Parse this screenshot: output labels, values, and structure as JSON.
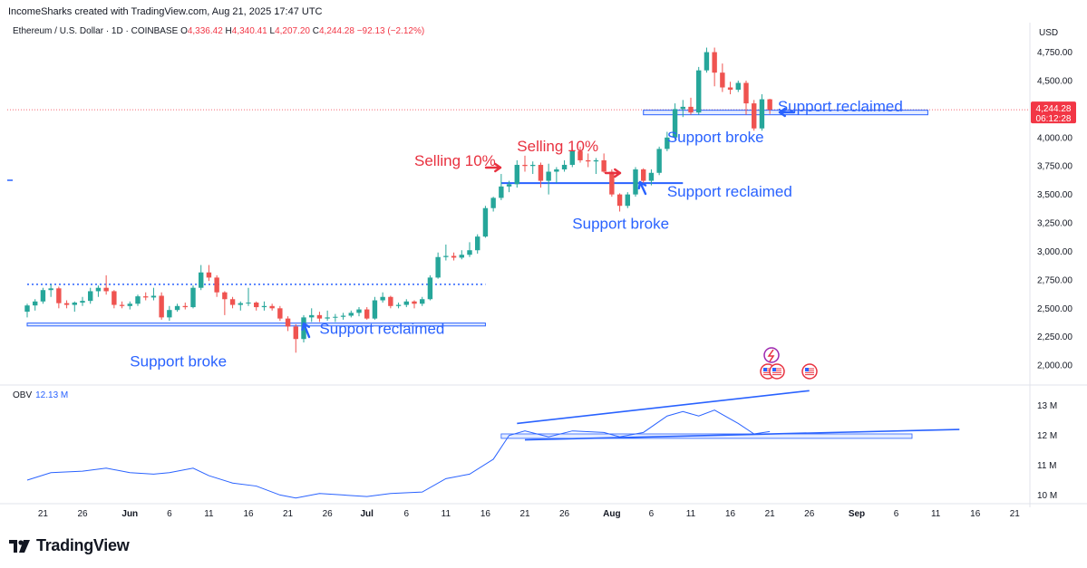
{
  "header": {
    "created_line": "IncomeSharks created with TradingView.com, Aug 21, 2025 17:47 UTC",
    "symbol": "Ethereum / U.S. Dollar · 1D · COINBASE",
    "ohlc": [
      {
        "label": "O",
        "value": "4,336.42"
      },
      {
        "label": "H",
        "value": "4,340.41"
      },
      {
        "label": "L",
        "value": "4,207.20"
      },
      {
        "label": "C",
        "value": "4,244.28"
      }
    ],
    "change": "−92.13 (−2.12%)"
  },
  "brand": {
    "name": "TradingView"
  },
  "colors": {
    "up": "#26a69a",
    "down": "#ef5350",
    "annotation_blue": "#2962ff",
    "annotation_red": "#e8313f",
    "price_label": "#f23645"
  },
  "chart_data": [
    {
      "type": "candlestick",
      "title": "Ethereum / U.S. Dollar · 1D · COINBASE",
      "currency_label": "USD",
      "ylim": [
        1850,
        4850
      ],
      "y_ticks": [
        "4,750.00",
        "4,500.00",
        "4,250.00",
        "4,000.00",
        "3,750.00",
        "3,500.00",
        "3,250.00",
        "3,000.00",
        "2,750.00",
        "2,500.00",
        "2,250.00",
        "2,000.00"
      ],
      "x_ticks": [
        "21",
        "26",
        "Jun",
        "6",
        "11",
        "16",
        "21",
        "26",
        "Jul",
        "6",
        "11",
        "16",
        "21",
        "26",
        "Aug",
        "6",
        "11",
        "16",
        "21",
        "26",
        "Sep",
        "6",
        "11",
        "16",
        "21"
      ],
      "x_range_dates": [
        "2025-05-19",
        "2025-09-22"
      ],
      "last_price": "4,244.28",
      "countdown": "06:12:28",
      "candles": [
        {
          "d": "2025-05-19",
          "o": 2470,
          "h": 2540,
          "l": 2420,
          "c": 2525
        },
        {
          "d": "2025-05-20",
          "o": 2525,
          "h": 2580,
          "l": 2480,
          "c": 2560
        },
        {
          "d": "2025-05-21",
          "o": 2560,
          "h": 2680,
          "l": 2540,
          "c": 2660
        },
        {
          "d": "2025-05-22",
          "o": 2660,
          "h": 2710,
          "l": 2600,
          "c": 2675
        },
        {
          "d": "2025-05-23",
          "o": 2675,
          "h": 2690,
          "l": 2500,
          "c": 2545
        },
        {
          "d": "2025-05-24",
          "o": 2545,
          "h": 2570,
          "l": 2500,
          "c": 2530
        },
        {
          "d": "2025-05-25",
          "o": 2530,
          "h": 2560,
          "l": 2470,
          "c": 2550
        },
        {
          "d": "2025-05-26",
          "o": 2550,
          "h": 2600,
          "l": 2520,
          "c": 2565
        },
        {
          "d": "2025-05-27",
          "o": 2565,
          "h": 2680,
          "l": 2540,
          "c": 2650
        },
        {
          "d": "2025-05-28",
          "o": 2650,
          "h": 2700,
          "l": 2600,
          "c": 2680
        },
        {
          "d": "2025-05-29",
          "o": 2680,
          "h": 2790,
          "l": 2620,
          "c": 2650
        },
        {
          "d": "2025-05-30",
          "o": 2650,
          "h": 2660,
          "l": 2500,
          "c": 2530
        },
        {
          "d": "2025-05-31",
          "o": 2530,
          "h": 2560,
          "l": 2500,
          "c": 2520
        },
        {
          "d": "2025-06-01",
          "o": 2520,
          "h": 2560,
          "l": 2490,
          "c": 2540
        },
        {
          "d": "2025-06-02",
          "o": 2540,
          "h": 2620,
          "l": 2520,
          "c": 2605
        },
        {
          "d": "2025-06-03",
          "o": 2605,
          "h": 2640,
          "l": 2570,
          "c": 2595
        },
        {
          "d": "2025-06-04",
          "o": 2595,
          "h": 2680,
          "l": 2570,
          "c": 2610
        },
        {
          "d": "2025-06-05",
          "o": 2610,
          "h": 2640,
          "l": 2400,
          "c": 2420
        },
        {
          "d": "2025-06-06",
          "o": 2420,
          "h": 2520,
          "l": 2390,
          "c": 2485
        },
        {
          "d": "2025-06-07",
          "o": 2485,
          "h": 2540,
          "l": 2470,
          "c": 2520
        },
        {
          "d": "2025-06-08",
          "o": 2520,
          "h": 2550,
          "l": 2490,
          "c": 2510
        },
        {
          "d": "2025-06-09",
          "o": 2510,
          "h": 2700,
          "l": 2500,
          "c": 2680
        },
        {
          "d": "2025-06-10",
          "o": 2680,
          "h": 2880,
          "l": 2660,
          "c": 2815
        },
        {
          "d": "2025-06-11",
          "o": 2815,
          "h": 2880,
          "l": 2740,
          "c": 2770
        },
        {
          "d": "2025-06-12",
          "o": 2770,
          "h": 2790,
          "l": 2600,
          "c": 2640
        },
        {
          "d": "2025-06-13",
          "o": 2640,
          "h": 2650,
          "l": 2440,
          "c": 2580
        },
        {
          "d": "2025-06-14",
          "o": 2580,
          "h": 2600,
          "l": 2500,
          "c": 2530
        },
        {
          "d": "2025-06-15",
          "o": 2530,
          "h": 2560,
          "l": 2480,
          "c": 2545
        },
        {
          "d": "2025-06-16",
          "o": 2545,
          "h": 2680,
          "l": 2520,
          "c": 2550
        },
        {
          "d": "2025-06-17",
          "o": 2550,
          "h": 2560,
          "l": 2480,
          "c": 2510
        },
        {
          "d": "2025-06-18",
          "o": 2510,
          "h": 2560,
          "l": 2480,
          "c": 2520
        },
        {
          "d": "2025-06-19",
          "o": 2520,
          "h": 2540,
          "l": 2480,
          "c": 2500
        },
        {
          "d": "2025-06-20",
          "o": 2500,
          "h": 2520,
          "l": 2390,
          "c": 2410
        },
        {
          "d": "2025-06-21",
          "o": 2410,
          "h": 2430,
          "l": 2300,
          "c": 2340
        },
        {
          "d": "2025-06-22",
          "o": 2340,
          "h": 2360,
          "l": 2110,
          "c": 2230
        },
        {
          "d": "2025-06-23",
          "o": 2230,
          "h": 2440,
          "l": 2200,
          "c": 2420
        },
        {
          "d": "2025-06-24",
          "o": 2420,
          "h": 2500,
          "l": 2380,
          "c": 2440
        },
        {
          "d": "2025-06-25",
          "o": 2440,
          "h": 2470,
          "l": 2380,
          "c": 2410
        },
        {
          "d": "2025-06-26",
          "o": 2410,
          "h": 2480,
          "l": 2390,
          "c": 2420
        },
        {
          "d": "2025-06-27",
          "o": 2420,
          "h": 2450,
          "l": 2380,
          "c": 2425
        },
        {
          "d": "2025-06-28",
          "o": 2425,
          "h": 2460,
          "l": 2400,
          "c": 2435
        },
        {
          "d": "2025-06-29",
          "o": 2435,
          "h": 2480,
          "l": 2420,
          "c": 2460
        },
        {
          "d": "2025-06-30",
          "o": 2460,
          "h": 2510,
          "l": 2430,
          "c": 2490
        },
        {
          "d": "2025-07-01",
          "o": 2490,
          "h": 2510,
          "l": 2400,
          "c": 2410
        },
        {
          "d": "2025-07-02",
          "o": 2410,
          "h": 2600,
          "l": 2400,
          "c": 2570
        },
        {
          "d": "2025-07-03",
          "o": 2570,
          "h": 2640,
          "l": 2550,
          "c": 2600
        },
        {
          "d": "2025-07-04",
          "o": 2600,
          "h": 2610,
          "l": 2500,
          "c": 2520
        },
        {
          "d": "2025-07-05",
          "o": 2520,
          "h": 2550,
          "l": 2500,
          "c": 2530
        },
        {
          "d": "2025-07-06",
          "o": 2530,
          "h": 2580,
          "l": 2510,
          "c": 2560
        },
        {
          "d": "2025-07-07",
          "o": 2560,
          "h": 2570,
          "l": 2500,
          "c": 2540
        },
        {
          "d": "2025-07-08",
          "o": 2540,
          "h": 2600,
          "l": 2520,
          "c": 2580
        },
        {
          "d": "2025-07-09",
          "o": 2580,
          "h": 2790,
          "l": 2570,
          "c": 2770
        },
        {
          "d": "2025-07-10",
          "o": 2770,
          "h": 2990,
          "l": 2760,
          "c": 2950
        },
        {
          "d": "2025-07-11",
          "o": 2950,
          "h": 3060,
          "l": 2920,
          "c": 2960
        },
        {
          "d": "2025-07-12",
          "o": 2960,
          "h": 2990,
          "l": 2920,
          "c": 2945
        },
        {
          "d": "2025-07-13",
          "o": 2945,
          "h": 3010,
          "l": 2930,
          "c": 2970
        },
        {
          "d": "2025-07-14",
          "o": 2970,
          "h": 3080,
          "l": 2950,
          "c": 3010
        },
        {
          "d": "2025-07-15",
          "o": 3010,
          "h": 3150,
          "l": 2980,
          "c": 3130
        },
        {
          "d": "2025-07-16",
          "o": 3130,
          "h": 3400,
          "l": 3120,
          "c": 3380
        },
        {
          "d": "2025-07-17",
          "o": 3380,
          "h": 3480,
          "l": 3350,
          "c": 3470
        },
        {
          "d": "2025-07-18",
          "o": 3470,
          "h": 3680,
          "l": 3450,
          "c": 3570
        },
        {
          "d": "2025-07-19",
          "o": 3570,
          "h": 3620,
          "l": 3520,
          "c": 3590
        },
        {
          "d": "2025-07-20",
          "o": 3590,
          "h": 3800,
          "l": 3560,
          "c": 3760
        },
        {
          "d": "2025-07-21",
          "o": 3760,
          "h": 3840,
          "l": 3700,
          "c": 3750
        },
        {
          "d": "2025-07-22",
          "o": 3750,
          "h": 3790,
          "l": 3680,
          "c": 3760
        },
        {
          "d": "2025-07-23",
          "o": 3760,
          "h": 3780,
          "l": 3560,
          "c": 3620
        },
        {
          "d": "2025-07-24",
          "o": 3620,
          "h": 3770,
          "l": 3500,
          "c": 3700
        },
        {
          "d": "2025-07-25",
          "o": 3700,
          "h": 3740,
          "l": 3600,
          "c": 3720
        },
        {
          "d": "2025-07-26",
          "o": 3720,
          "h": 3800,
          "l": 3700,
          "c": 3760
        },
        {
          "d": "2025-07-27",
          "o": 3760,
          "h": 3900,
          "l": 3740,
          "c": 3880
        },
        {
          "d": "2025-07-28",
          "o": 3880,
          "h": 3920,
          "l": 3780,
          "c": 3800
        },
        {
          "d": "2025-07-29",
          "o": 3800,
          "h": 3860,
          "l": 3740,
          "c": 3790
        },
        {
          "d": "2025-07-30",
          "o": 3790,
          "h": 3820,
          "l": 3680,
          "c": 3800
        },
        {
          "d": "2025-07-31",
          "o": 3800,
          "h": 3860,
          "l": 3690,
          "c": 3700
        },
        {
          "d": "2025-08-01",
          "o": 3700,
          "h": 3720,
          "l": 3480,
          "c": 3500
        },
        {
          "d": "2025-08-02",
          "o": 3500,
          "h": 3510,
          "l": 3350,
          "c": 3400
        },
        {
          "d": "2025-08-03",
          "o": 3400,
          "h": 3520,
          "l": 3380,
          "c": 3500
        },
        {
          "d": "2025-08-04",
          "o": 3500,
          "h": 3740,
          "l": 3480,
          "c": 3720
        },
        {
          "d": "2025-08-05",
          "o": 3720,
          "h": 3730,
          "l": 3600,
          "c": 3620
        },
        {
          "d": "2025-08-06",
          "o": 3620,
          "h": 3720,
          "l": 3580,
          "c": 3690
        },
        {
          "d": "2025-08-07",
          "o": 3690,
          "h": 3920,
          "l": 3670,
          "c": 3900
        },
        {
          "d": "2025-08-08",
          "o": 3900,
          "h": 4050,
          "l": 3880,
          "c": 4000
        },
        {
          "d": "2025-08-09",
          "o": 4000,
          "h": 4300,
          "l": 3980,
          "c": 4250
        },
        {
          "d": "2025-08-10",
          "o": 4250,
          "h": 4330,
          "l": 4180,
          "c": 4270
        },
        {
          "d": "2025-08-11",
          "o": 4270,
          "h": 4350,
          "l": 4200,
          "c": 4220
        },
        {
          "d": "2025-08-12",
          "o": 4220,
          "h": 4620,
          "l": 4200,
          "c": 4590
        },
        {
          "d": "2025-08-13",
          "o": 4590,
          "h": 4790,
          "l": 4570,
          "c": 4750
        },
        {
          "d": "2025-08-14",
          "o": 4750,
          "h": 4790,
          "l": 4450,
          "c": 4570
        },
        {
          "d": "2025-08-15",
          "o": 4570,
          "h": 4650,
          "l": 4400,
          "c": 4440
        },
        {
          "d": "2025-08-16",
          "o": 4440,
          "h": 4490,
          "l": 4380,
          "c": 4420
        },
        {
          "d": "2025-08-17",
          "o": 4420,
          "h": 4500,
          "l": 4400,
          "c": 4480
        },
        {
          "d": "2025-08-18",
          "o": 4480,
          "h": 4500,
          "l": 4200,
          "c": 4300
        },
        {
          "d": "2025-08-19",
          "o": 4300,
          "h": 4330,
          "l": 4060,
          "c": 4080
        },
        {
          "d": "2025-08-20",
          "o": 4080,
          "h": 4380,
          "l": 4060,
          "c": 4336
        },
        {
          "d": "2025-08-21",
          "o": 4336,
          "h": 4340,
          "l": 4207,
          "c": 4244
        }
      ],
      "drawings": [
        {
          "kind": "box",
          "from": "2025-05-19",
          "to": "2025-07-16",
          "y_top": 2370,
          "y_bottom": 2345,
          "color": "#2962ff"
        },
        {
          "kind": "dotted",
          "from": "2025-05-19",
          "to": "2025-07-16",
          "y": 2710,
          "color": "#2962ff"
        },
        {
          "kind": "line",
          "from": "2025-07-18",
          "to": "2025-08-10",
          "y": 3600,
          "color": "#2962ff"
        },
        {
          "kind": "box",
          "from": "2025-08-05",
          "to": "2025-09-10",
          "y_top": 4240,
          "y_bottom": 4200,
          "color": "#2962ff"
        }
      ],
      "annotations": [
        {
          "text": "Support broke",
          "d": "2025-06-01",
          "y": 1990,
          "color": "#2962ff"
        },
        {
          "text": "Support reclaimed",
          "d": "2025-06-25",
          "y": 2275,
          "color": "#2962ff"
        },
        {
          "text": "Selling 10%",
          "d": "2025-07-07",
          "y": 3750,
          "color": "#e8313f"
        },
        {
          "text": "Selling 10%",
          "d": "2025-07-20",
          "y": 3880,
          "color": "#e8313f"
        },
        {
          "text": "Support broke",
          "d": "2025-07-27",
          "y": 3200,
          "color": "#2962ff"
        },
        {
          "text": "Support reclaimed",
          "d": "2025-08-08",
          "y": 3480,
          "color": "#2962ff"
        },
        {
          "text": "Support broke",
          "d": "2025-08-08",
          "y": 3960,
          "color": "#2962ff"
        },
        {
          "text": "Support reclaimed",
          "d": "2025-08-22",
          "y": 4230,
          "color": "#2962ff"
        }
      ]
    },
    {
      "type": "line",
      "title": "OBV",
      "value_label": "12.13 M",
      "ylim": [
        9.8,
        13.6
      ],
      "y_ticks": [
        "13 M",
        "12 M",
        "11 M",
        "10 M"
      ],
      "series": [
        {
          "name": "OBV",
          "x": [
            "2025-05-19",
            "2025-05-22",
            "2025-05-26",
            "2025-05-29",
            "2025-06-01",
            "2025-06-04",
            "2025-06-06",
            "2025-06-09",
            "2025-06-11",
            "2025-06-14",
            "2025-06-17",
            "2025-06-20",
            "2025-06-22",
            "2025-06-25",
            "2025-06-28",
            "2025-07-01",
            "2025-07-04",
            "2025-07-08",
            "2025-07-11",
            "2025-07-14",
            "2025-07-17",
            "2025-07-19",
            "2025-07-21",
            "2025-07-24",
            "2025-07-27",
            "2025-07-31",
            "2025-08-02",
            "2025-08-05",
            "2025-08-08",
            "2025-08-10",
            "2025-08-12",
            "2025-08-14",
            "2025-08-17",
            "2025-08-19",
            "2025-08-21"
          ],
          "values": [
            10.5,
            10.75,
            10.8,
            10.9,
            10.75,
            10.7,
            10.75,
            10.9,
            10.65,
            10.4,
            10.3,
            10.0,
            9.9,
            10.05,
            10.0,
            9.95,
            10.05,
            10.1,
            10.55,
            10.7,
            11.2,
            12.0,
            12.15,
            11.95,
            12.15,
            12.1,
            11.95,
            12.1,
            12.65,
            12.8,
            12.65,
            12.85,
            12.4,
            12.05,
            12.13
          ]
        }
      ],
      "drawings": [
        {
          "kind": "line",
          "from": "2025-07-20",
          "to": "2025-08-26",
          "y_from": 12.4,
          "y_to": 13.5
        },
        {
          "kind": "line",
          "from": "2025-07-21",
          "to": "2025-09-14",
          "y_from": 11.85,
          "y_to": 12.2
        },
        {
          "kind": "box",
          "from": "2025-07-18",
          "to": "2025-09-08",
          "y_top": 12.05,
          "y_bottom": 11.9
        }
      ]
    }
  ]
}
